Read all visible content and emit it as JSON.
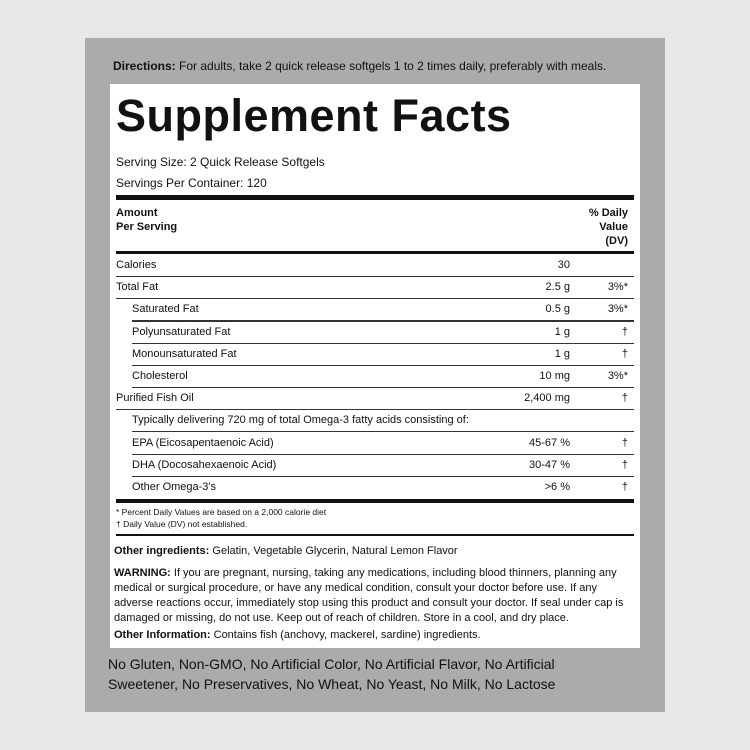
{
  "directions": {
    "label": "Directions:",
    "text": "For adults, take 2 quick release softgels 1 to 2 times daily, preferably with meals."
  },
  "title": "Supplement Facts",
  "serving_size": "Serving Size: 2 Quick Release Softgels",
  "servings_per_container": "Servings Per Container: 120",
  "header": {
    "amount": [
      "Amount",
      "Per Serving"
    ],
    "dv": [
      "% Daily",
      "Value",
      "(DV)"
    ]
  },
  "rows": [
    {
      "name": "Calories",
      "amount": "30"
    },
    {
      "name": "Total Fat",
      "amount": "2.5 g",
      "dv": "3%*"
    },
    {
      "name": "Saturated Fat",
      "amount": "0.5 g",
      "dv": "3%*"
    },
    {
      "name": "Polyunsaturated Fat",
      "amount": "1 g",
      "dv": "†"
    },
    {
      "name": "Monounsaturated Fat",
      "amount": "1 g",
      "dv": "†"
    },
    {
      "name": "Cholesterol",
      "amount": "10 mg",
      "dv": "3%*"
    },
    {
      "name": "Purified Fish Oil",
      "amount": "2,400 mg",
      "dv": "†"
    },
    {
      "name": "Typically delivering 720 mg of total Omega-3 fatty acids consisting of:"
    },
    {
      "name": "EPA (Eicosapentaenoic Acid)",
      "amount": "45-67 %",
      "dv": "†"
    },
    {
      "name": "DHA (Docosahexaenoic Acid)",
      "amount": "30-47 %",
      "dv": "†"
    },
    {
      "name": "Other Omega-3's",
      "amount": ">6 %",
      "dv": "†"
    }
  ],
  "footnotes": [
    "* Percent Daily Values are based on a 2,000 calorie diet",
    "† Daily Value (DV) not established."
  ],
  "other_ingredients": {
    "label": "Other ingredients:",
    "text": "Gelatin, Vegetable Glycerin, Natural Lemon Flavor"
  },
  "warning": {
    "label": "WARNING:",
    "text": "If you are pregnant, nursing, taking any medications, including blood thinners, planning any medical or surgical procedure, or have any medical condition, consult your doctor before use. If any adverse reactions occur, immediately stop using this product and consult your doctor. If seal under cap is damaged or missing, do not use. Keep out of reach of children. Store in a cool, and dry place."
  },
  "other_information": {
    "label": "Other Information:",
    "text": "Contains fish (anchovy, mackerel, sardine) ingredients."
  },
  "claims": "No Gluten, Non-GMO, No Artificial Color, No Artificial Flavor, No Artificial Sweetener, No Preservatives, No Wheat, No Yeast, No Milk, No Lactose"
}
